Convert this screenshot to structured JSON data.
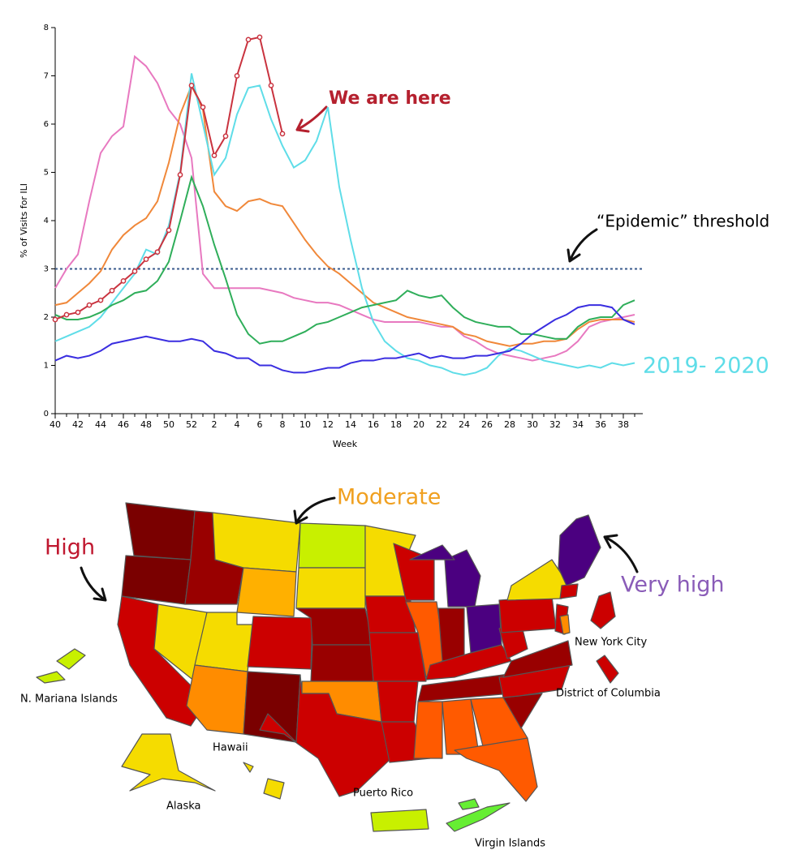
{
  "chart_data": {
    "type": "line",
    "ylabel": "% of Visits for ILI",
    "xlabel": "Week",
    "categories": [
      "40",
      null,
      "42",
      null,
      "44",
      null,
      "46",
      null,
      "48",
      null,
      "50",
      null,
      "52",
      null,
      "2",
      null,
      "4",
      null,
      "6",
      null,
      "8",
      null,
      "10",
      null,
      "12",
      null,
      "14",
      null,
      "16",
      null,
      "18",
      null,
      "20",
      null,
      "22",
      null,
      "24",
      null,
      "26",
      null,
      "28",
      null,
      "30",
      null,
      "32",
      null,
      "34",
      null,
      "36",
      null,
      "38",
      null
    ],
    "ylim": [
      0,
      8
    ],
    "yticks": [
      0,
      1,
      2,
      3,
      4,
      5,
      6,
      7,
      8
    ],
    "threshold": 3,
    "threshold_label": "“Epidemic” threshold",
    "annotation": "We are here",
    "series": [
      {
        "color": "#e879c0",
        "values": [
          2.6,
          3.0,
          3.3,
          4.4,
          5.4,
          5.75,
          5.95,
          7.4,
          7.2,
          6.85,
          6.3,
          6.0,
          5.3,
          2.9,
          2.6,
          2.6,
          2.6,
          2.6,
          2.6,
          2.55,
          2.5,
          2.4,
          2.35,
          2.3,
          2.3,
          2.25,
          2.15,
          2.05,
          1.95,
          1.9,
          1.9,
          1.9,
          1.9,
          1.85,
          1.8,
          1.8,
          1.6,
          1.5,
          1.35,
          1.25,
          1.2,
          1.15,
          1.1,
          1.15,
          1.2,
          1.3,
          1.5,
          1.8,
          1.9,
          1.95,
          2.0,
          2.05
        ]
      },
      {
        "color": "#f0883a",
        "values": [
          2.25,
          2.3,
          2.5,
          2.7,
          2.95,
          3.4,
          3.7,
          3.9,
          4.05,
          4.4,
          5.2,
          6.2,
          6.8,
          6.3,
          4.6,
          4.3,
          4.2,
          4.4,
          4.45,
          4.35,
          4.3,
          3.95,
          3.6,
          3.3,
          3.05,
          2.9,
          2.7,
          2.5,
          2.3,
          2.2,
          2.1,
          2.0,
          1.95,
          1.9,
          1.85,
          1.8,
          1.65,
          1.6,
          1.5,
          1.45,
          1.4,
          1.45,
          1.45,
          1.5,
          1.5,
          1.55,
          1.75,
          1.9,
          1.95,
          1.95,
          1.95,
          1.9
        ]
      },
      {
        "name": "2019- 2020",
        "color": "#5fdde8",
        "values": [
          1.5,
          1.6,
          1.7,
          1.8,
          2.0,
          2.3,
          2.6,
          2.9,
          3.4,
          3.3,
          3.9,
          5.0,
          7.05,
          6.0,
          4.95,
          5.3,
          6.2,
          6.75,
          6.8,
          6.1,
          5.55,
          5.1,
          5.25,
          5.65,
          6.35,
          4.7,
          3.6,
          2.6,
          1.9,
          1.5,
          1.3,
          1.15,
          1.1,
          1.0,
          0.95,
          0.85,
          0.8,
          0.85,
          0.95,
          1.2,
          1.35,
          1.3,
          1.2,
          1.1,
          1.05,
          1.0,
          0.95,
          1.0,
          0.95,
          1.05,
          1.0,
          1.05
        ]
      },
      {
        "color": "#2fae5a",
        "values": [
          2.05,
          1.95,
          1.95,
          2.0,
          2.1,
          2.25,
          2.35,
          2.5,
          2.55,
          2.75,
          3.15,
          4.0,
          4.9,
          4.3,
          3.5,
          2.8,
          2.05,
          1.65,
          1.45,
          1.5,
          1.5,
          1.6,
          1.7,
          1.85,
          1.9,
          2.0,
          2.1,
          2.2,
          2.25,
          2.3,
          2.35,
          2.55,
          2.45,
          2.4,
          2.45,
          2.2,
          2.0,
          1.9,
          1.85,
          1.8,
          1.8,
          1.65,
          1.65,
          1.6,
          1.55,
          1.55,
          1.8,
          1.95,
          2.0,
          2.0,
          2.25,
          2.35
        ]
      },
      {
        "color": "#3a2ee0",
        "values": [
          1.1,
          1.2,
          1.15,
          1.2,
          1.3,
          1.45,
          1.5,
          1.55,
          1.6,
          1.55,
          1.5,
          1.5,
          1.55,
          1.5,
          1.3,
          1.25,
          1.15,
          1.15,
          1.0,
          1.0,
          0.9,
          0.85,
          0.85,
          0.9,
          0.95,
          0.95,
          1.05,
          1.1,
          1.1,
          1.15,
          1.15,
          1.2,
          1.25,
          1.15,
          1.2,
          1.15,
          1.15,
          1.2,
          1.2,
          1.25,
          1.3,
          1.45,
          1.65,
          1.8,
          1.95,
          2.05,
          2.2,
          2.25,
          2.25,
          2.2,
          1.95,
          1.85
        ]
      },
      {
        "color": "#c9333f",
        "markers": true,
        "values": [
          1.95,
          2.05,
          2.1,
          2.25,
          2.35,
          2.55,
          2.75,
          2.95,
          3.2,
          3.35,
          3.8,
          4.95,
          6.8,
          6.35,
          5.35,
          5.75,
          7.0,
          7.75,
          7.8,
          6.8,
          5.8,
          null,
          null,
          null,
          null,
          null,
          null,
          null,
          null,
          null,
          null,
          null,
          null,
          null,
          null,
          null,
          null,
          null,
          null,
          null,
          null,
          null,
          null,
          null,
          null,
          null,
          null,
          null,
          null,
          null,
          null,
          null
        ]
      }
    ]
  },
  "map": {
    "labels": {
      "high": "High",
      "moderate": "Moderate",
      "very_high": "Very high"
    },
    "places": [
      "N. Mariana Islands",
      "Hawaii",
      "Alaska",
      "Puerto Rico",
      "Virgin Islands",
      "New York City",
      "District of Columbia"
    ]
  }
}
